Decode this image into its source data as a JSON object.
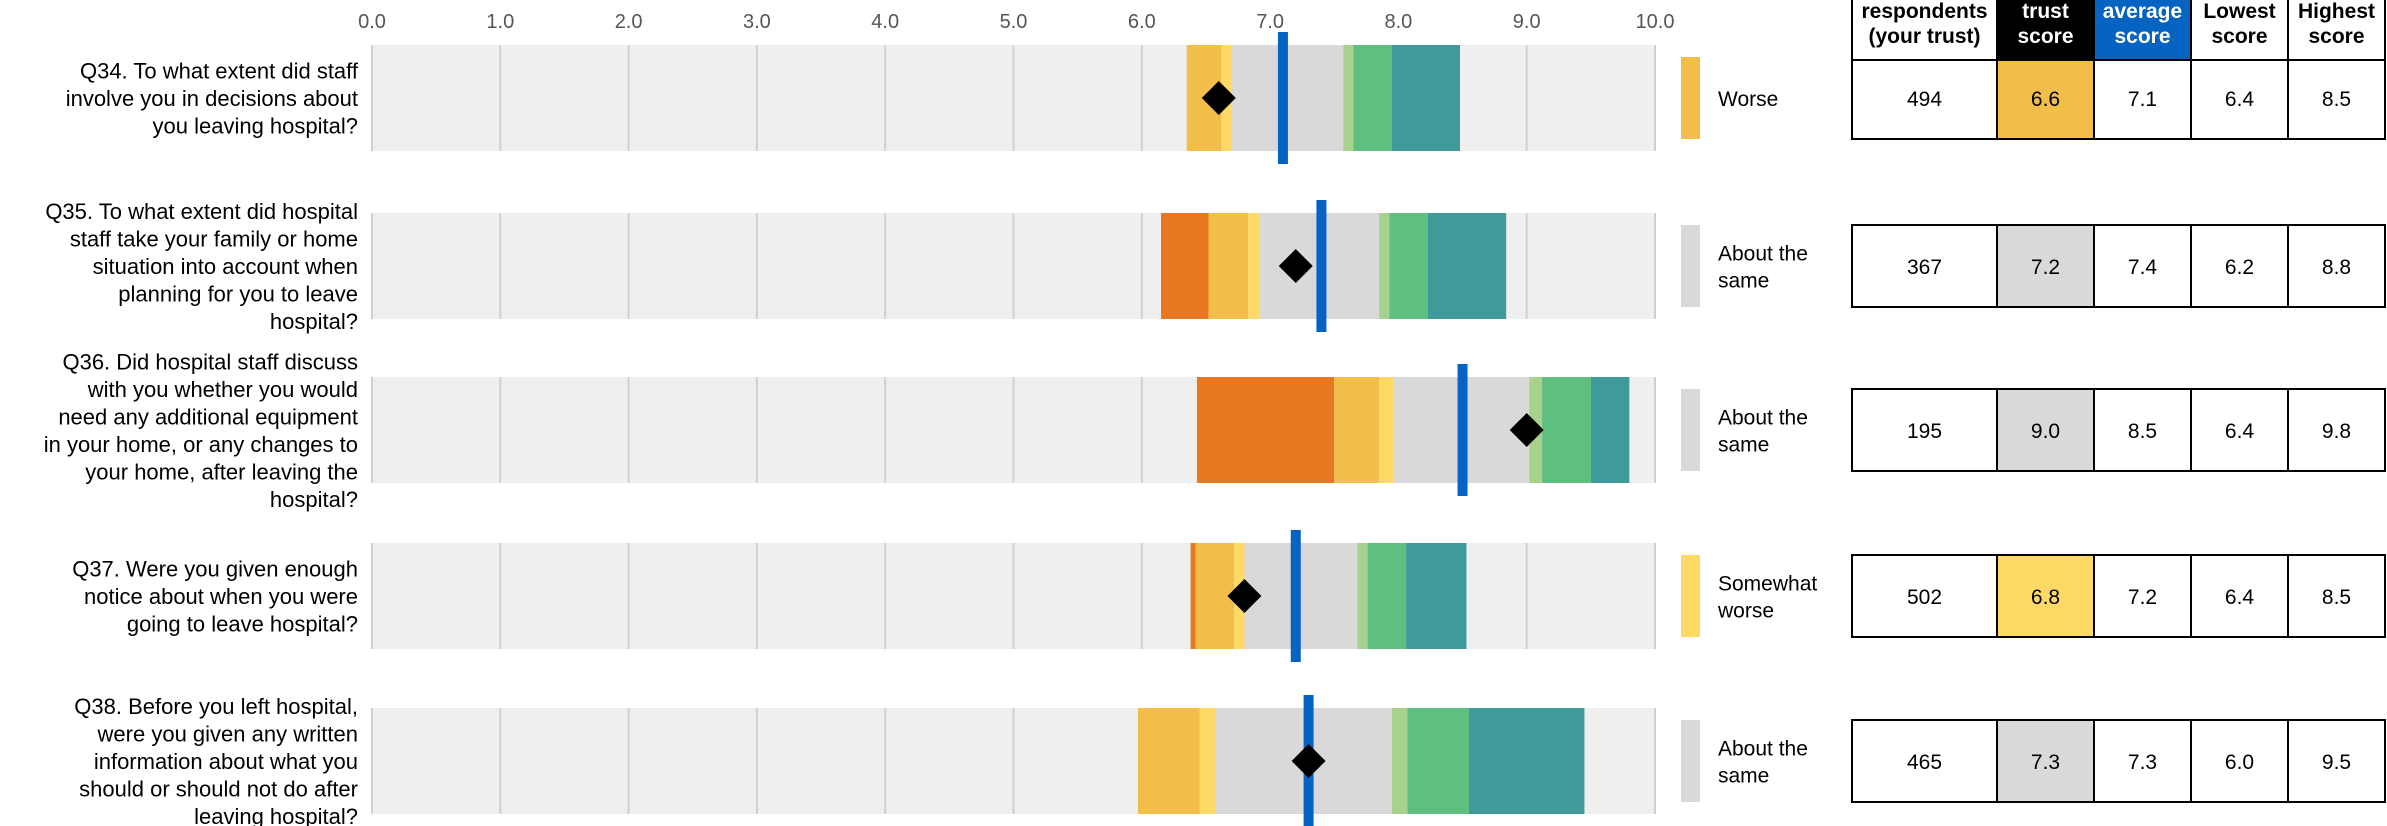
{
  "chart_data": {
    "type": "bar",
    "x_ticks": [
      "0.0",
      "1.0",
      "2.0",
      "3.0",
      "4.0",
      "5.0",
      "6.0",
      "7.0",
      "8.0",
      "9.0",
      "10.0"
    ],
    "xlim": [
      0,
      10
    ],
    "grid": true,
    "colors": {
      "background_bar": "#efefef",
      "much_worse": "#e87722",
      "worse": "#f2be4a",
      "somewhat_worse": "#ffd966",
      "about_same": "#d9d9d9",
      "somewhat_better": "#a9d18e",
      "better": "#5fbf80",
      "much_better": "#3f9a9a",
      "trust_score_marker": "#000000",
      "national_average_line": "#0563c1"
    },
    "table_headers": {
      "respondents": [
        "respondents",
        "(your trust)"
      ],
      "trust_score": [
        "trust",
        "score"
      ],
      "average_score": [
        "average",
        "score"
      ],
      "lowest_score": [
        "Lowest",
        "score"
      ],
      "highest_score": [
        "Highest",
        "score"
      ]
    },
    "questions": [
      {
        "label": [
          "Q34. To what extent did staff",
          "involve you in decisions about",
          "you leaving hospital?"
        ],
        "segments": [
          {
            "band": "worse",
            "from": 6.35,
            "to": 6.62
          },
          {
            "band": "somewhat_worse",
            "from": 6.62,
            "to": 6.7
          },
          {
            "band": "about_same",
            "from": 6.7,
            "to": 7.57
          },
          {
            "band": "somewhat_better",
            "from": 7.57,
            "to": 7.65
          },
          {
            "band": "better",
            "from": 7.65,
            "to": 7.95
          },
          {
            "band": "much_better",
            "from": 7.95,
            "to": 8.48
          }
        ],
        "trust_score": 6.6,
        "national_average": 7.1,
        "band_label": "Worse",
        "band_key": "worse",
        "respondents": "494",
        "trust_score_text": "6.6",
        "average_score_text": "7.1",
        "lowest_score_text": "6.4",
        "highest_score_text": "8.5"
      },
      {
        "label": [
          "Q35. To what extent did hospital",
          "staff take your family or home",
          "situation into account when",
          "planning for you to leave",
          "hospital?"
        ],
        "segments": [
          {
            "band": "much_worse",
            "from": 6.15,
            "to": 6.52
          },
          {
            "band": "worse",
            "from": 6.52,
            "to": 6.83
          },
          {
            "band": "somewhat_worse",
            "from": 6.83,
            "to": 6.92
          },
          {
            "band": "about_same",
            "from": 6.92,
            "to": 7.85
          },
          {
            "band": "somewhat_better",
            "from": 7.85,
            "to": 7.93
          },
          {
            "band": "better",
            "from": 7.93,
            "to": 8.23
          },
          {
            "band": "much_better",
            "from": 8.23,
            "to": 8.84
          }
        ],
        "trust_score": 7.2,
        "national_average": 7.4,
        "band_label": "About the same",
        "band_key": "about_same",
        "respondents": "367",
        "trust_score_text": "7.2",
        "average_score_text": "7.4",
        "lowest_score_text": "6.2",
        "highest_score_text": "8.8"
      },
      {
        "label": [
          "Q36. Did hospital staff discuss",
          "with you whether you would",
          "need any additional equipment",
          "in your home, or any changes to",
          "your home, after leaving the",
          "hospital?"
        ],
        "segments": [
          {
            "band": "much_worse",
            "from": 6.43,
            "to": 7.5
          },
          {
            "band": "worse",
            "from": 7.5,
            "to": 7.85
          },
          {
            "band": "somewhat_worse",
            "from": 7.85,
            "to": 7.96
          },
          {
            "band": "about_same",
            "from": 7.96,
            "to": 9.02
          },
          {
            "band": "somewhat_better",
            "from": 9.02,
            "to": 9.12
          },
          {
            "band": "better",
            "from": 9.12,
            "to": 9.5
          },
          {
            "band": "much_better",
            "from": 9.5,
            "to": 9.8
          }
        ],
        "trust_score": 9.0,
        "national_average": 8.5,
        "band_label": "About the same",
        "band_key": "about_same",
        "respondents": "195",
        "trust_score_text": "9.0",
        "average_score_text": "8.5",
        "lowest_score_text": "6.4",
        "highest_score_text": "9.8"
      },
      {
        "label": [
          "Q37. Were you given enough",
          "notice about when you were",
          "going to leave hospital?"
        ],
        "segments": [
          {
            "band": "much_worse",
            "from": 6.38,
            "to": 6.42
          },
          {
            "band": "worse",
            "from": 6.42,
            "to": 6.72
          },
          {
            "band": "somewhat_worse",
            "from": 6.72,
            "to": 6.8
          },
          {
            "band": "about_same",
            "from": 6.8,
            "to": 7.68
          },
          {
            "band": "somewhat_better",
            "from": 7.68,
            "to": 7.76
          },
          {
            "band": "better",
            "from": 7.76,
            "to": 8.06
          },
          {
            "band": "much_better",
            "from": 8.06,
            "to": 8.53
          }
        ],
        "trust_score": 6.8,
        "national_average": 7.2,
        "band_label": "Somewhat worse",
        "band_key": "somewhat_worse",
        "respondents": "502",
        "trust_score_text": "6.8",
        "average_score_text": "7.2",
        "lowest_score_text": "6.4",
        "highest_score_text": "8.5"
      },
      {
        "label": [
          "Q38. Before you left hospital,",
          "were you given any written",
          "information about what you",
          "should or should not do after",
          "leaving hospital?"
        ],
        "segments": [
          {
            "band": "worse",
            "from": 5.97,
            "to": 6.45
          },
          {
            "band": "somewhat_worse",
            "from": 6.45,
            "to": 6.57
          },
          {
            "band": "about_same",
            "from": 6.57,
            "to": 7.95
          },
          {
            "band": "somewhat_better",
            "from": 7.95,
            "to": 8.07
          },
          {
            "band": "better",
            "from": 8.07,
            "to": 8.55
          },
          {
            "band": "much_better",
            "from": 8.55,
            "to": 9.45
          }
        ],
        "trust_score": 7.3,
        "national_average": 7.3,
        "band_label": "About the same",
        "band_key": "about_same",
        "respondents": "465",
        "trust_score_text": "7.3",
        "average_score_text": "7.3",
        "lowest_score_text": "6.0",
        "highest_score_text": "9.5"
      }
    ]
  }
}
